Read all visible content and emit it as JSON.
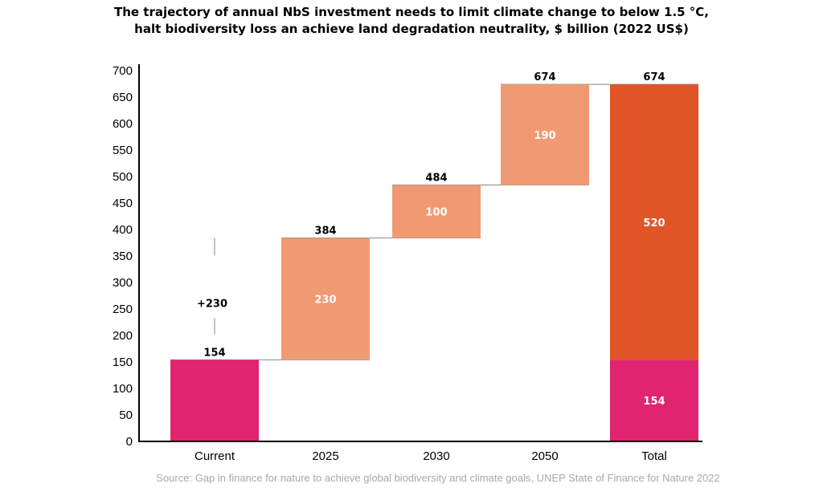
{
  "title_lines": [
    "The trajectory of annual NbS investment needs to limit climate change to below 1.5 °C,",
    "halt biodiversity loss an achieve land degradation neutrality, $ billion (2022 US$)"
  ],
  "source": "Source: Gap in finance for nature to achieve global biodiversity and climate goals, UNEP State of Finance for Nature 2022",
  "colors": {
    "current": "#e0246f",
    "increment": "#f09a74",
    "total_top": "#e05428",
    "connector": "#888888",
    "axis": "#000000"
  },
  "chart_data": {
    "type": "bar",
    "subtype": "waterfall",
    "ylim": [
      0,
      700
    ],
    "yticks": [
      0,
      50,
      100,
      150,
      200,
      250,
      300,
      350,
      400,
      450,
      500,
      550,
      600,
      650,
      700
    ],
    "grid": false,
    "categories": [
      "Current",
      "2025",
      "2030",
      "2050",
      "Total"
    ],
    "bars": [
      {
        "category": "Current",
        "base": 0,
        "value": 154,
        "top_label": "154",
        "inner_label": "",
        "color_key": "current"
      },
      {
        "category": "2025",
        "base": 154,
        "value": 230,
        "top_label": "384",
        "inner_label": "230",
        "color_key": "increment"
      },
      {
        "category": "2030",
        "base": 384,
        "value": 100,
        "top_label": "484",
        "inner_label": "100",
        "color_key": "increment"
      },
      {
        "category": "2050",
        "base": 484,
        "value": 190,
        "top_label": "674",
        "inner_label": "190",
        "color_key": "increment"
      },
      {
        "category": "Total",
        "stack": [
          {
            "base": 0,
            "value": 154,
            "inner_label": "154",
            "color_key": "current"
          },
          {
            "base": 154,
            "value": 520,
            "inner_label": "520",
            "color_key": "total_top"
          }
        ],
        "top_label": "674"
      }
    ],
    "annotation": {
      "text": "+230",
      "from": 154,
      "to": 384,
      "category": "Current"
    }
  }
}
